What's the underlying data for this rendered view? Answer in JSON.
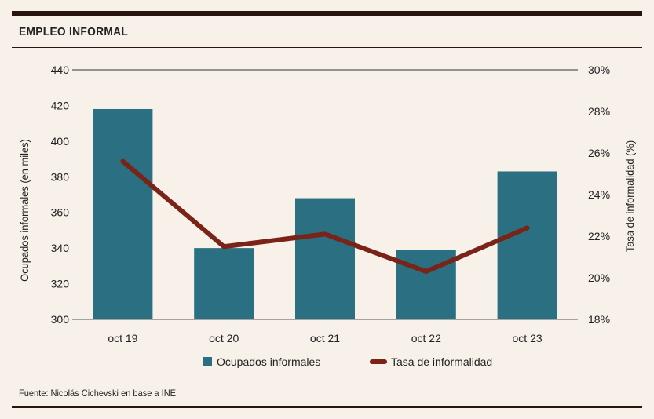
{
  "header": {
    "title": "EMPLEO INFORMAL"
  },
  "footer": {
    "source": "Fuente: Nicolás Cichevski en base a INE."
  },
  "chart_data": {
    "type": "bar",
    "categories": [
      "oct 19",
      "oct 20",
      "oct 21",
      "oct 22",
      "oct 23"
    ],
    "series": [
      {
        "name": "Ocupados informales",
        "type": "bar",
        "axis": "left",
        "color": "#2a6f82",
        "values": [
          418,
          340,
          368,
          339,
          383
        ]
      },
      {
        "name": "Tasa de informalidad",
        "type": "line",
        "axis": "right",
        "color": "#7a2318",
        "values": [
          25.6,
          21.5,
          22.1,
          20.3,
          22.4
        ]
      }
    ],
    "ylabel": "Ocupados informales (en miles)",
    "y2label": "Tasa de informalidad (%)",
    "ylim": [
      300,
      440
    ],
    "y2lim": [
      18,
      30
    ],
    "yticks": [
      "300",
      "320",
      "340",
      "360",
      "380",
      "400",
      "420",
      "440"
    ],
    "y2ticks": [
      "18%",
      "20%",
      "22%",
      "24%",
      "26%",
      "28%",
      "30%"
    ],
    "legend_position": "bottom"
  }
}
